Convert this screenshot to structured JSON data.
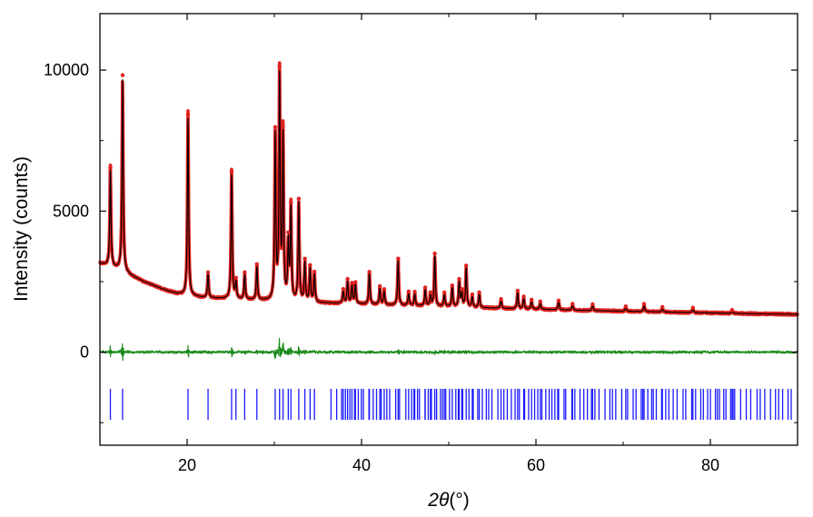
{
  "chart_data": {
    "type": "line",
    "title": "",
    "xlabel": "2θ(°)",
    "xlabel_parts": {
      "italic": "2θ",
      "rest": "(°)"
    },
    "ylabel": "Intensity (counts)",
    "xlim": [
      10,
      90
    ],
    "ylim": [
      -3300,
      12000
    ],
    "x_ticks": [
      20,
      40,
      60,
      80
    ],
    "y_ticks": [
      0,
      5000,
      10000
    ],
    "grid": false,
    "legend": "none",
    "colors": {
      "observed": "#e0231f",
      "calculated": "#000000",
      "difference": "#1a8a1a",
      "reflections": "#1a1aff"
    },
    "background_points": [
      [
        10,
        3150
      ],
      [
        11,
        3050
      ],
      [
        12,
        2950
      ],
      [
        13,
        2800
      ],
      [
        14,
        2650
      ],
      [
        15,
        2500
      ],
      [
        16,
        2380
      ],
      [
        17,
        2260
      ],
      [
        18,
        2150
      ],
      [
        19,
        2060
      ],
      [
        20,
        2000
      ],
      [
        22,
        1930
      ],
      [
        25,
        1880
      ],
      [
        28,
        1840
      ],
      [
        30,
        1800
      ],
      [
        35,
        1750
      ],
      [
        40,
        1700
      ],
      [
        45,
        1650
      ],
      [
        50,
        1610
      ],
      [
        55,
        1560
      ],
      [
        60,
        1520
      ],
      [
        65,
        1480
      ],
      [
        70,
        1450
      ],
      [
        75,
        1420
      ],
      [
        80,
        1390
      ],
      [
        85,
        1360
      ],
      [
        90,
        1340
      ]
    ],
    "peaks": [
      [
        11.2,
        3400
      ],
      [
        12.6,
        6800
      ],
      [
        20.1,
        6300
      ],
      [
        22.4,
        850
      ],
      [
        25.1,
        4400
      ],
      [
        25.6,
        600
      ],
      [
        26.6,
        900
      ],
      [
        28.0,
        1200
      ],
      [
        30.1,
        5800
      ],
      [
        30.6,
        7800
      ],
      [
        31.0,
        5700
      ],
      [
        31.6,
        2000
      ],
      [
        31.9,
        3200
      ],
      [
        32.8,
        3500
      ],
      [
        33.5,
        1400
      ],
      [
        34.1,
        1200
      ],
      [
        34.6,
        1000
      ],
      [
        37.9,
        450
      ],
      [
        38.4,
        800
      ],
      [
        38.9,
        650
      ],
      [
        39.3,
        700
      ],
      [
        40.9,
        1100
      ],
      [
        42.1,
        600
      ],
      [
        42.6,
        500
      ],
      [
        44.2,
        1600
      ],
      [
        45.4,
        450
      ],
      [
        46.1,
        450
      ],
      [
        47.3,
        600
      ],
      [
        47.9,
        400
      ],
      [
        48.4,
        1800
      ],
      [
        49.5,
        450
      ],
      [
        50.4,
        700
      ],
      [
        51.2,
        900
      ],
      [
        51.5,
        500
      ],
      [
        52.0,
        1400
      ],
      [
        52.7,
        400
      ],
      [
        53.5,
        500
      ],
      [
        56.0,
        300
      ],
      [
        57.9,
        600
      ],
      [
        58.6,
        400
      ],
      [
        59.5,
        300
      ],
      [
        60.5,
        250
      ],
      [
        62.6,
        300
      ],
      [
        64.2,
        200
      ],
      [
        66.5,
        200
      ],
      [
        70.3,
        150
      ],
      [
        72.4,
        250
      ],
      [
        74.5,
        150
      ],
      [
        78.0,
        150
      ],
      [
        82.5,
        100
      ]
    ],
    "reflections_2theta": [
      11.2,
      12.6,
      20.1,
      22.4,
      25.1,
      25.6,
      26.6,
      28.0,
      30.1,
      30.6,
      31.0,
      31.6,
      31.9,
      32.8,
      33.5,
      34.1,
      34.6,
      37.9,
      38.4,
      38.9,
      39.3,
      40.9,
      42.1,
      42.6,
      44.2,
      45.4,
      46.1,
      47.3,
      47.9,
      48.4,
      49.5,
      50.4,
      51.2,
      51.5,
      52.0,
      52.7,
      53.5,
      56.0,
      57.9,
      58.6,
      59.5,
      60.5,
      62.6,
      64.2,
      66.5,
      70.3,
      72.4,
      74.5,
      78.0,
      82.5
    ],
    "reflection_band": [
      -1300,
      -2400
    ]
  }
}
